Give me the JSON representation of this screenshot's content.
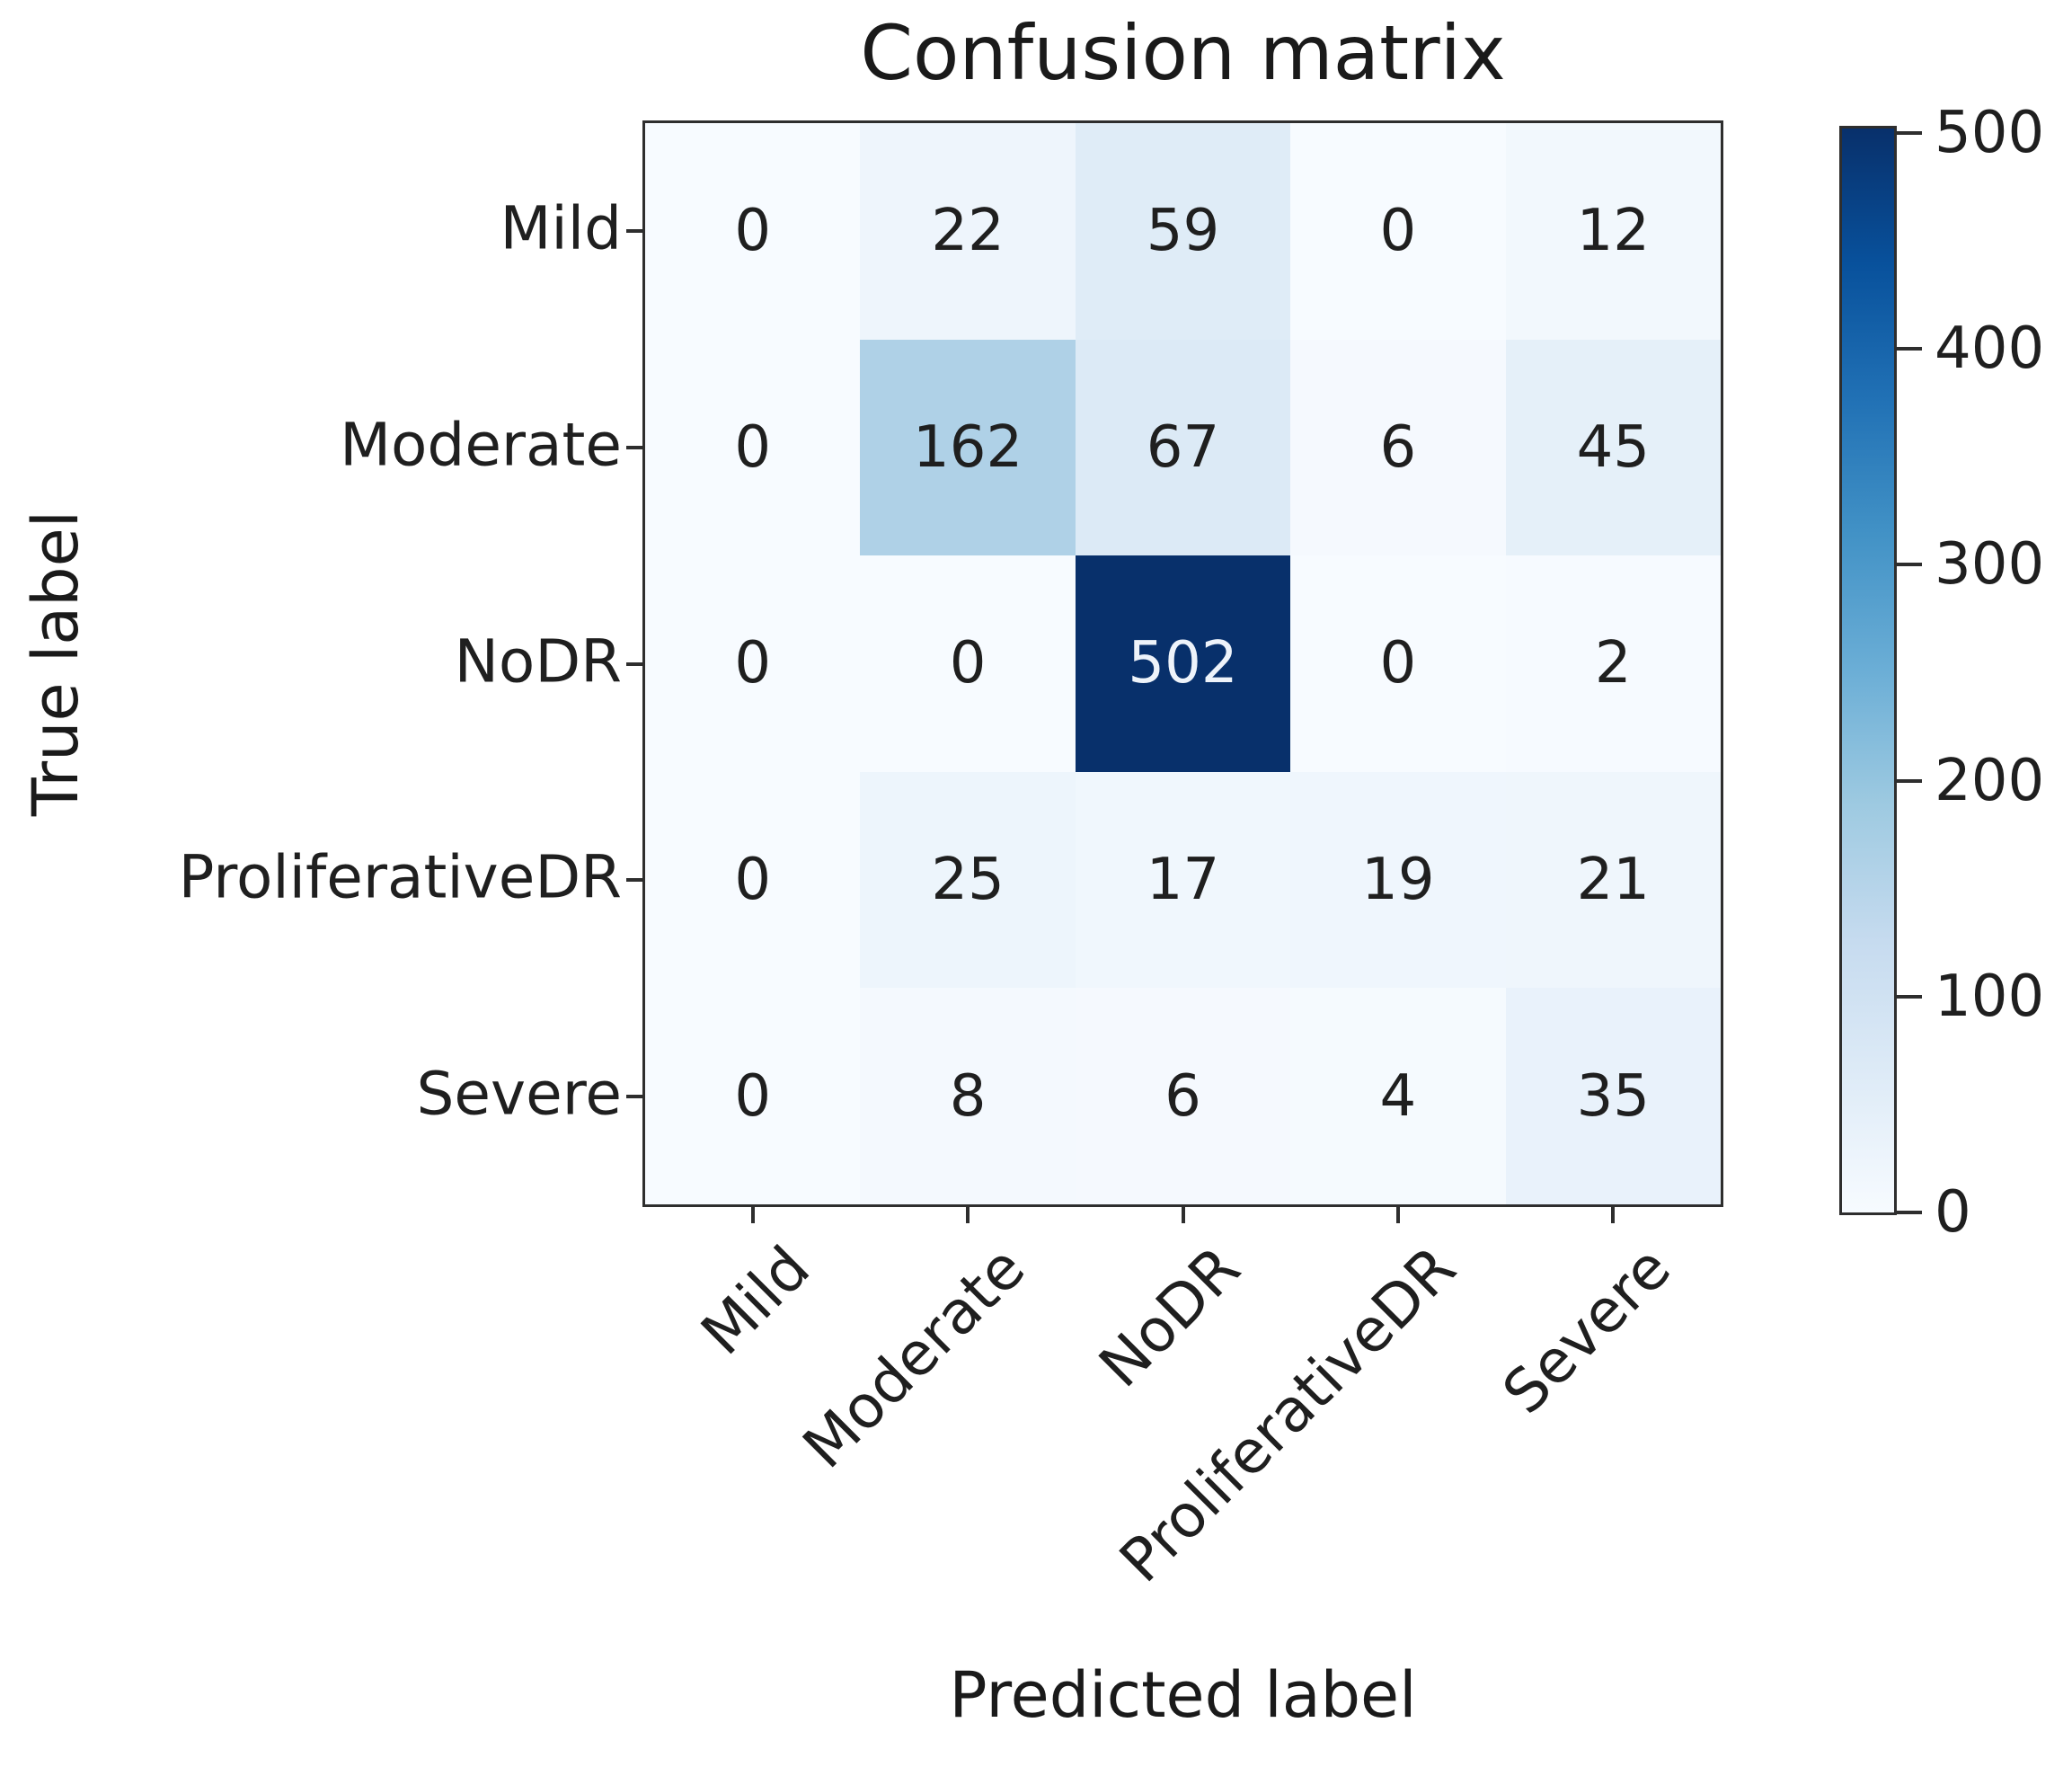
{
  "chart_data": {
    "type": "heatmap",
    "title": "Confusion matrix",
    "xlabel": "Predicted label",
    "ylabel": "True label",
    "x_categories": [
      "Mild",
      "Moderate",
      "NoDR",
      "ProliferativeDR",
      "Severe"
    ],
    "y_categories": [
      "Mild",
      "Moderate",
      "NoDR",
      "ProliferativeDR",
      "Severe"
    ],
    "matrix": [
      [
        0,
        22,
        59,
        0,
        12
      ],
      [
        0,
        162,
        67,
        6,
        45
      ],
      [
        0,
        0,
        502,
        0,
        2
      ],
      [
        0,
        25,
        17,
        19,
        21
      ],
      [
        0,
        8,
        6,
        4,
        35
      ]
    ],
    "vmin": 0,
    "vmax": 502,
    "colormap_name": "Blues",
    "colormap_stops": [
      [
        0.0,
        "#f7fbff"
      ],
      [
        0.125,
        "#deebf7"
      ],
      [
        0.25,
        "#c6dbef"
      ],
      [
        0.375,
        "#9ecae1"
      ],
      [
        0.5,
        "#6baed6"
      ],
      [
        0.625,
        "#4292c6"
      ],
      [
        0.75,
        "#2171b5"
      ],
      [
        0.875,
        "#08519c"
      ],
      [
        1.0,
        "#08306b"
      ]
    ],
    "colorbar_ticks": [
      0,
      100,
      200,
      300,
      400,
      500
    ],
    "colorbar_position": "right",
    "grid": false,
    "x_tick_rotation_deg": 45,
    "cell_text_color_light_bg": "#1f1f1f",
    "cell_text_color_dark_bg": "#eef3fa"
  }
}
